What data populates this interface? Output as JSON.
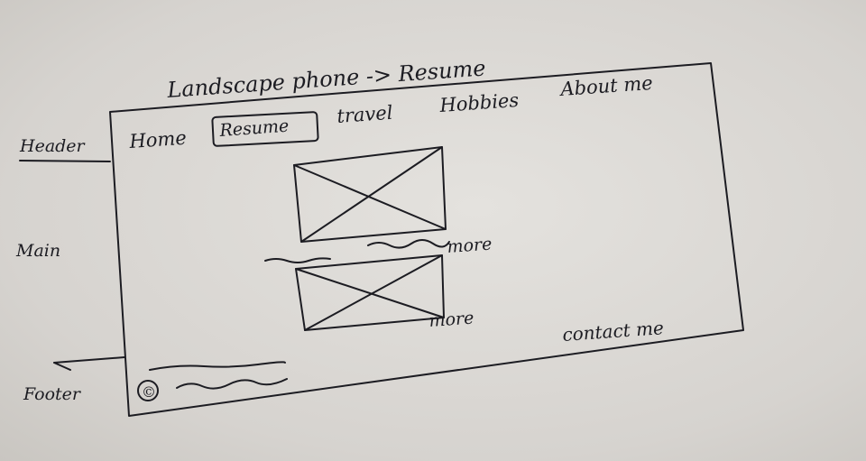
{
  "sheet": {
    "title": "Landscape phone -> Resume",
    "side_labels": {
      "header": "Header",
      "main": "Main",
      "footer": "Footer"
    },
    "nav": {
      "items": [
        "Home",
        "Resume",
        "travel",
        "Hobbies",
        "About me"
      ],
      "active": "Resume"
    },
    "main": {
      "more_labels": [
        "more",
        "more"
      ]
    },
    "footer": {
      "copyright_symbol": "©",
      "contact": "contact me"
    },
    "ink_color": "#1c1c22"
  }
}
